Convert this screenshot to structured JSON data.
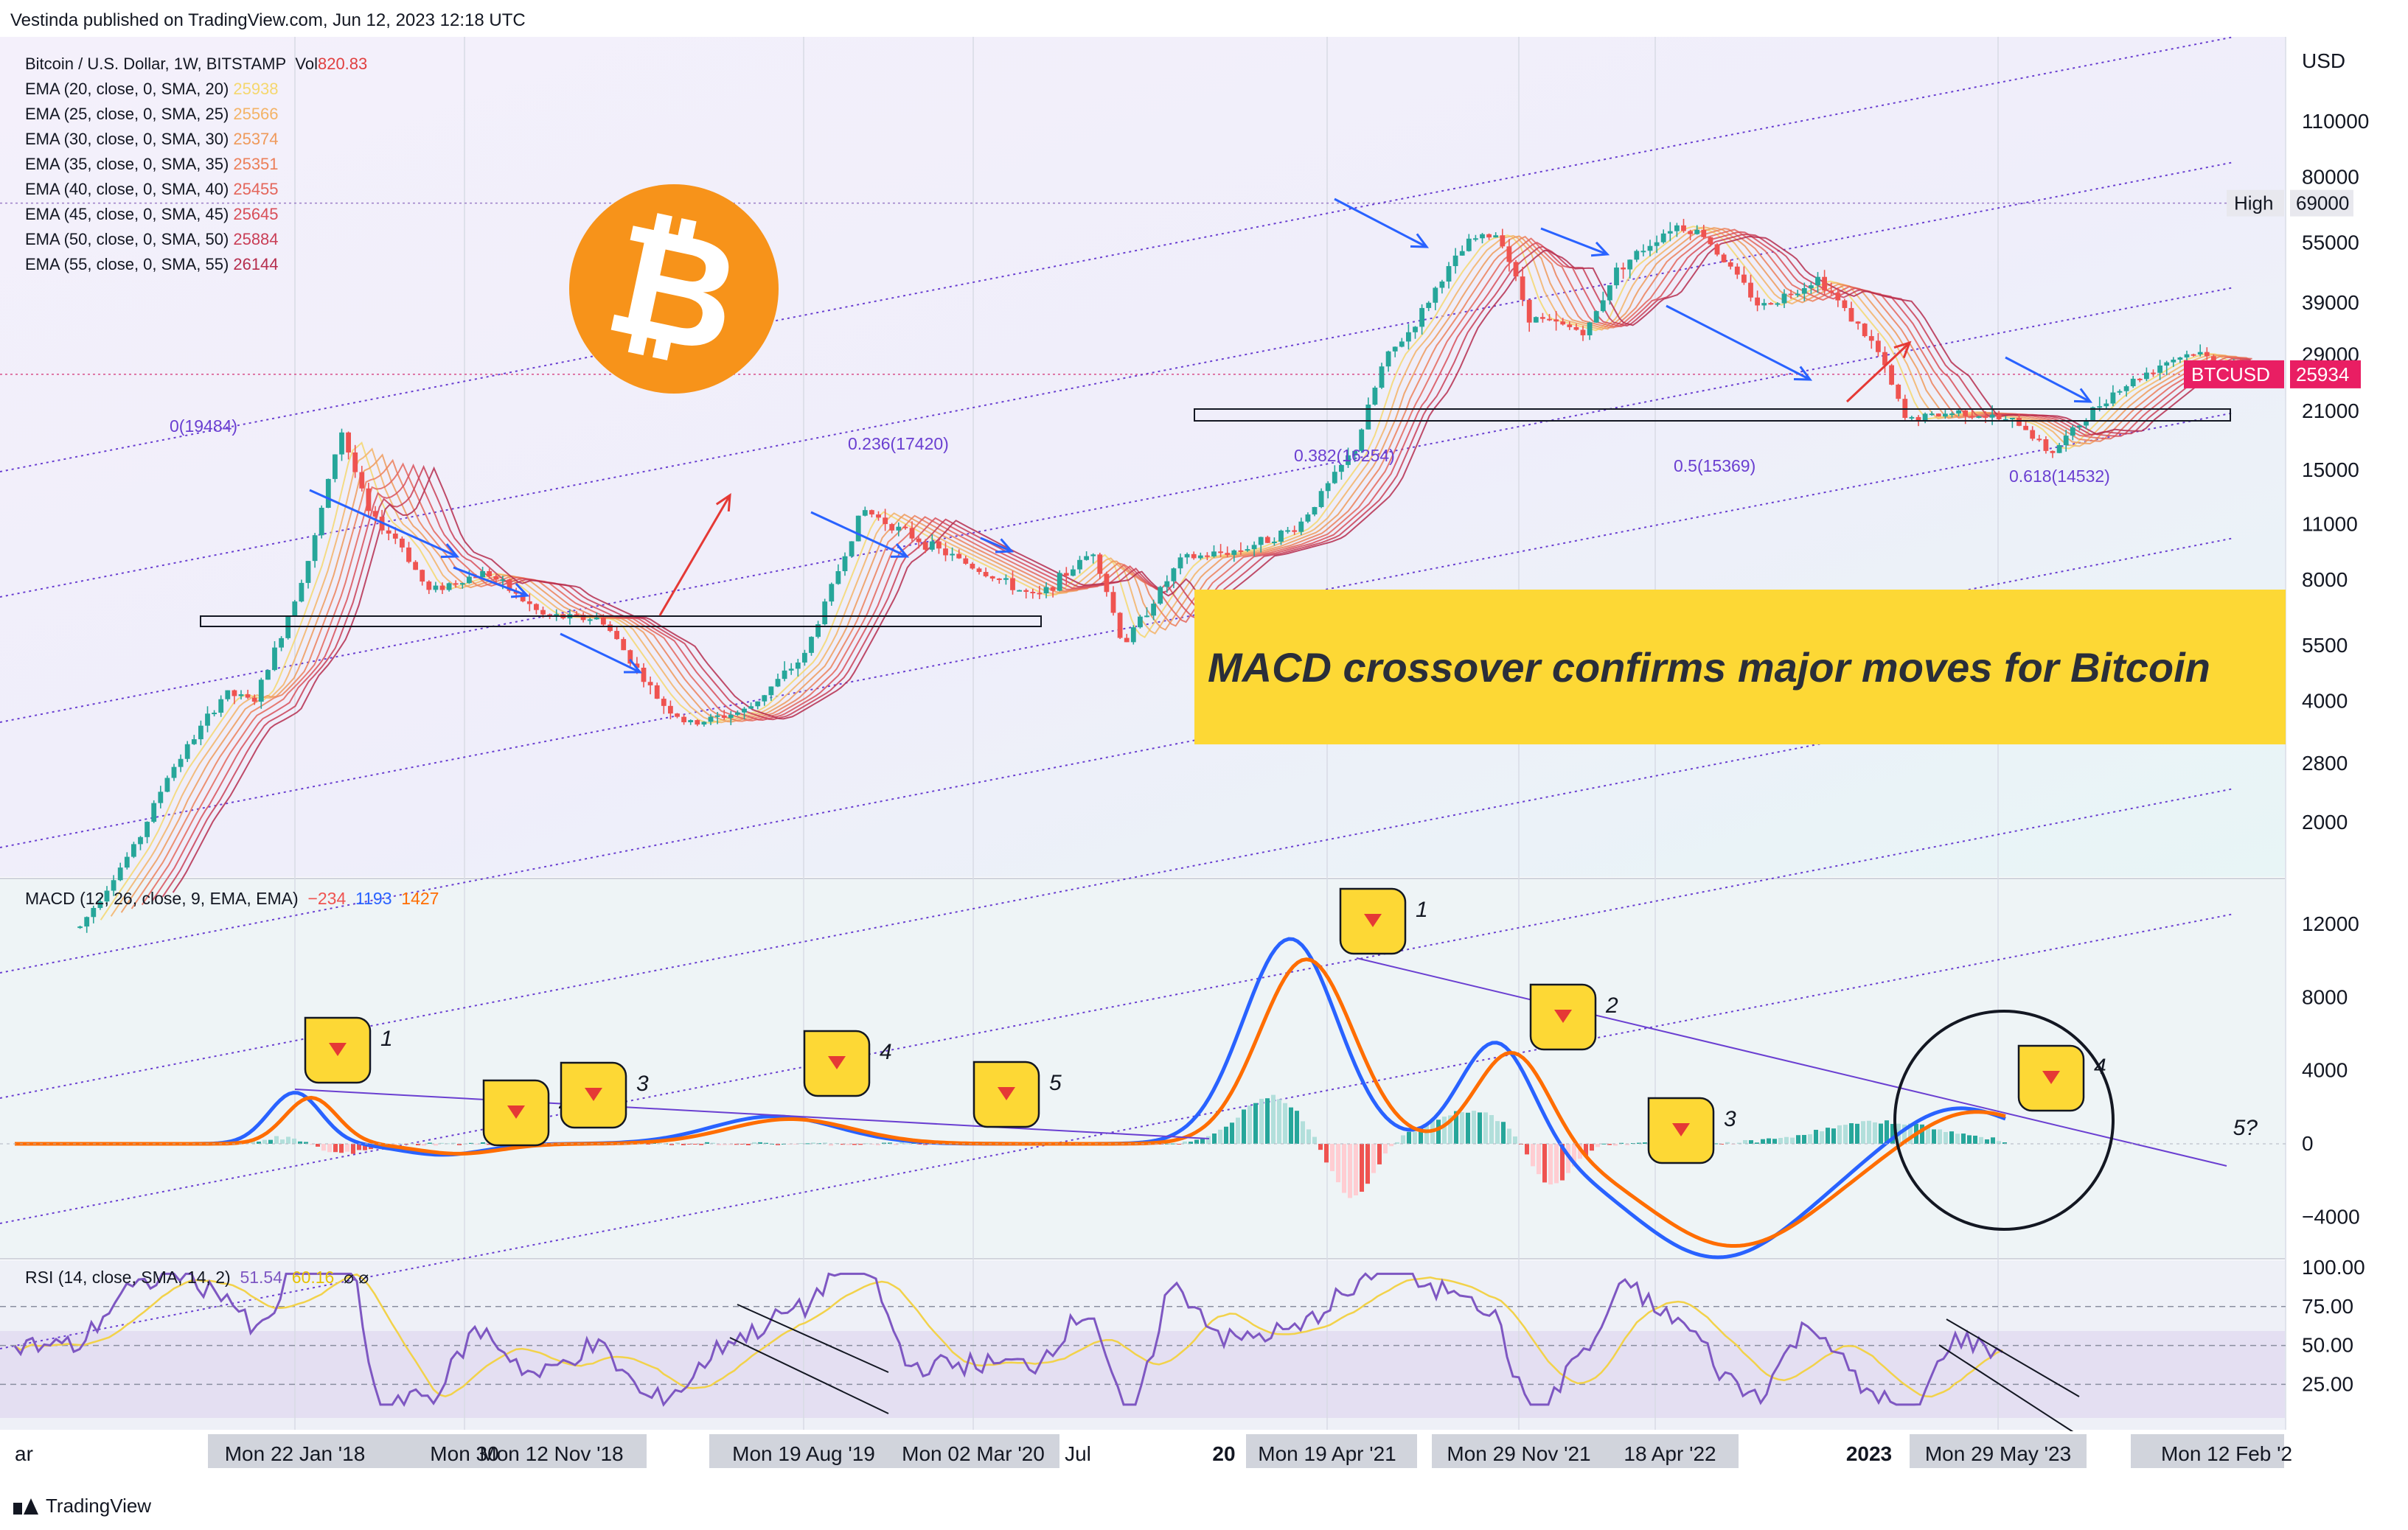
{
  "header": {
    "published": "Vestinda published on TradingView.com, Jun 12, 2023 12:18 UTC"
  },
  "symbol": {
    "title": "Bitcoin / U.S. Dollar, 1W, BITSTAMP",
    "vol_label": "Vol",
    "vol_value": "820.83"
  },
  "ema_list": [
    {
      "label": "EMA (20, close, 0, SMA, 20)",
      "value": "25938",
      "color": "#f5d76e"
    },
    {
      "label": "EMA (25, close, 0, SMA, 25)",
      "value": "25566",
      "color": "#f3b366"
    },
    {
      "label": "EMA (30, close, 0, SMA, 30)",
      "value": "25374",
      "color": "#ef9a5b"
    },
    {
      "label": "EMA (35, close, 0, SMA, 35)",
      "value": "25351",
      "color": "#ec7f59"
    },
    {
      "label": "EMA (40, close, 0, SMA, 40)",
      "value": "25455",
      "color": "#e4655a"
    },
    {
      "label": "EMA (45, close, 0, SMA, 45)",
      "value": "25645",
      "color": "#d84f59"
    },
    {
      "label": "EMA (50, close, 0, SMA, 50)",
      "value": "25884",
      "color": "#c93e56"
    },
    {
      "label": "EMA (55, close, 0, SMA, 55)",
      "value": "26144",
      "color": "#b52d4d"
    }
  ],
  "banner": {
    "text": "MACD  crossover confirms major moves for Bitcoin"
  },
  "logo": {
    "glyph": "₿"
  },
  "macd_label": {
    "text": "MACD (12, 26, close, 9, EMA, EMA)",
    "v1": "−234",
    "v2": "1193",
    "v3": "1427"
  },
  "rsi_label": {
    "text": "RSI (14, close, SMA, 14, 2)",
    "v1": "51.54",
    "v2": "60.16",
    "v3": "⌀ ⌀"
  },
  "footer": {
    "brand": "TradingView"
  },
  "chart_data": {
    "type": "candlestick",
    "price_axis": {
      "unit": "USD",
      "scale": "log",
      "ticks": [
        "110000",
        "80000",
        "55000",
        "39000",
        "29000",
        "21000",
        "15000",
        "11000",
        "8000",
        "5500",
        "4000",
        "2800",
        "2000"
      ]
    },
    "price_tags": [
      {
        "label": "High",
        "value": "69000"
      },
      {
        "label": "BTCUSD",
        "value": "25934"
      }
    ],
    "fib_levels": [
      {
        "label": "0(19484)"
      },
      {
        "label": "0.236(17420)"
      },
      {
        "label": "0.382(16254)"
      },
      {
        "label": "0.5(15369)"
      },
      {
        "label": "0.618(14532)"
      }
    ],
    "macd_axis": {
      "ticks": [
        "12000",
        "8000",
        "4000",
        "0",
        "−4000"
      ]
    },
    "rsi_axis": {
      "ticks": [
        "100.00",
        "75.00",
        "50.00",
        "25.00"
      ]
    },
    "time_labels": [
      "ar",
      "Mon 22 Jan '18",
      "Mon 30",
      "Mon 12 Nov '18",
      "Mon 19 Aug '19",
      "Mon 02 Mar '20",
      "Jul",
      "20",
      "Mon 19 Apr '21",
      "Mon 29 Nov '21",
      "18 Apr '22",
      "2023",
      "Mon 29 May '23",
      "Mon 12 Feb '2"
    ],
    "macd_markers": [
      "1",
      "2",
      "3",
      "4",
      "5",
      "1",
      "2",
      "3",
      "4"
    ],
    "macd_question": "5?",
    "weekly_close": [
      {
        "date": "2017-03",
        "close": 1100
      },
      {
        "date": "2017-05",
        "close": 1800
      },
      {
        "date": "2017-06",
        "close": 2600
      },
      {
        "date": "2017-08",
        "close": 4200
      },
      {
        "date": "2017-09",
        "close": 4000
      },
      {
        "date": "2017-10",
        "close": 6000
      },
      {
        "date": "2017-11",
        "close": 9500
      },
      {
        "date": "2017-12",
        "close": 19000
      },
      {
        "date": "2018-01",
        "close": 11500
      },
      {
        "date": "2018-02",
        "close": 10000
      },
      {
        "date": "2018-03",
        "close": 7500
      },
      {
        "date": "2018-05",
        "close": 8400
      },
      {
        "date": "2018-07",
        "close": 6500
      },
      {
        "date": "2018-09",
        "close": 6400
      },
      {
        "date": "2018-11",
        "close": 4000
      },
      {
        "date": "2018-12",
        "close": 3500
      },
      {
        "date": "2019-02",
        "close": 3800
      },
      {
        "date": "2019-04",
        "close": 5200
      },
      {
        "date": "2019-06",
        "close": 12000
      },
      {
        "date": "2019-08",
        "close": 10000
      },
      {
        "date": "2019-10",
        "close": 8500
      },
      {
        "date": "2019-12",
        "close": 7200
      },
      {
        "date": "2020-02",
        "close": 9500
      },
      {
        "date": "2020-03",
        "close": 5500
      },
      {
        "date": "2020-05",
        "close": 9000
      },
      {
        "date": "2020-07",
        "close": 9500
      },
      {
        "date": "2020-09",
        "close": 10800
      },
      {
        "date": "2020-11",
        "close": 17000
      },
      {
        "date": "2020-12",
        "close": 28000
      },
      {
        "date": "2021-01",
        "close": 34000
      },
      {
        "date": "2021-02",
        "close": 45000
      },
      {
        "date": "2021-03",
        "close": 56000
      },
      {
        "date": "2021-04",
        "close": 58000
      },
      {
        "date": "2021-05",
        "close": 36000
      },
      {
        "date": "2021-07",
        "close": 33000
      },
      {
        "date": "2021-08",
        "close": 47000
      },
      {
        "date": "2021-10",
        "close": 61000
      },
      {
        "date": "2021-11",
        "close": 58000
      },
      {
        "date": "2021-12",
        "close": 47000
      },
      {
        "date": "2022-01",
        "close": 38000
      },
      {
        "date": "2022-03",
        "close": 45000
      },
      {
        "date": "2022-05",
        "close": 30000
      },
      {
        "date": "2022-06",
        "close": 20000
      },
      {
        "date": "2022-08",
        "close": 21000
      },
      {
        "date": "2022-10",
        "close": 19500
      },
      {
        "date": "2022-11",
        "close": 16500
      },
      {
        "date": "2023-01",
        "close": 23000
      },
      {
        "date": "2023-03",
        "close": 28000
      },
      {
        "date": "2023-04",
        "close": 29500
      },
      {
        "date": "2023-05",
        "close": 27000
      },
      {
        "date": "2023-06",
        "close": 25934
      }
    ]
  }
}
